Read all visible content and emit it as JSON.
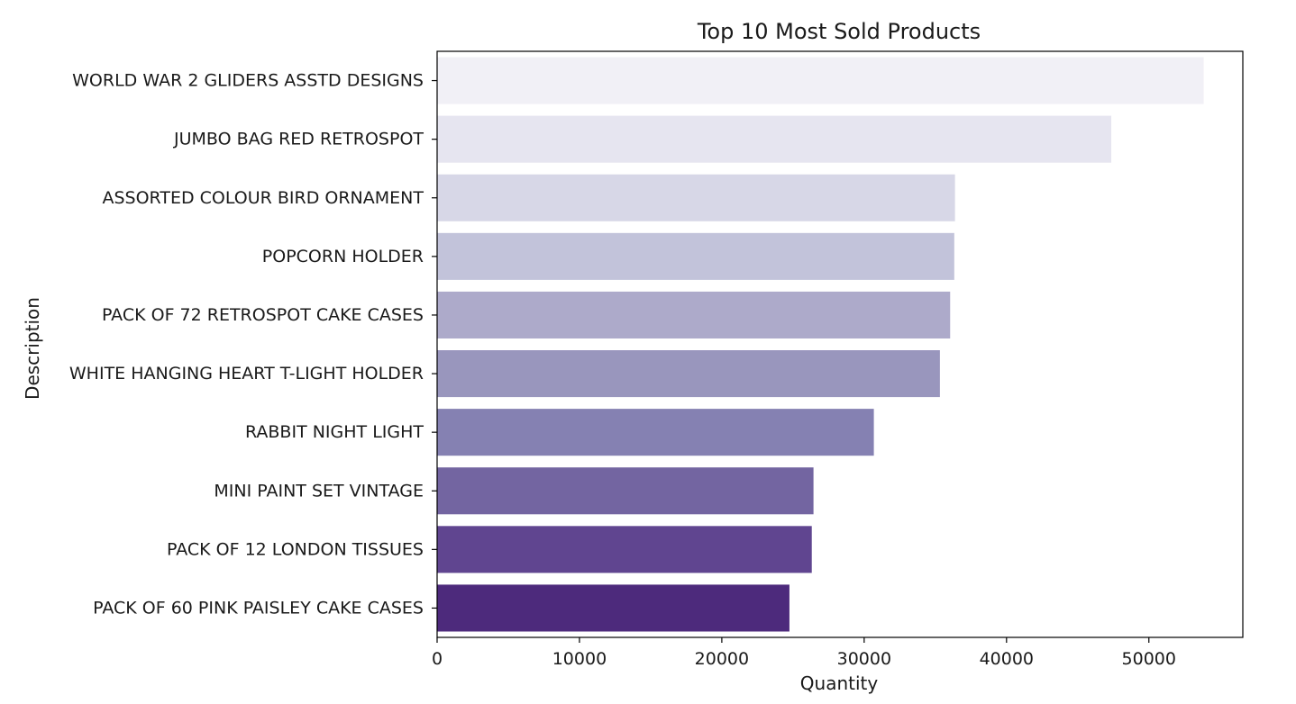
{
  "chart_data": {
    "type": "bar",
    "orientation": "horizontal",
    "title": "Top 10 Most Sold Products",
    "xlabel": "Quantity",
    "ylabel": "Description",
    "xlim": [
      0,
      56600
    ],
    "xticks": [
      0,
      10000,
      20000,
      30000,
      40000,
      50000
    ],
    "grid": false,
    "categories": [
      "WORLD WAR 2 GLIDERS ASSTD DESIGNS",
      "JUMBO BAG RED RETROSPOT",
      "ASSORTED COLOUR BIRD ORNAMENT",
      "POPCORN HOLDER",
      "PACK OF 72 RETROSPOT CAKE CASES",
      "WHITE HANGING HEART T-LIGHT HOLDER",
      "RABBIT NIGHT LIGHT",
      "MINI PAINT SET VINTAGE ",
      "PACK OF 12 LONDON TISSUES ",
      "PACK OF 60 PINK PAISLEY CAKE CASES"
    ],
    "values": [
      53850,
      47360,
      36380,
      36330,
      36040,
      35320,
      30680,
      26440,
      26320,
      24750
    ],
    "colors": [
      "#f1f0f6",
      "#e6e5f0",
      "#d7d7e7",
      "#c2c3da",
      "#adaaca",
      "#9996bd",
      "#8581b2",
      "#7365a1",
      "#604590",
      "#4d2a7c"
    ]
  }
}
